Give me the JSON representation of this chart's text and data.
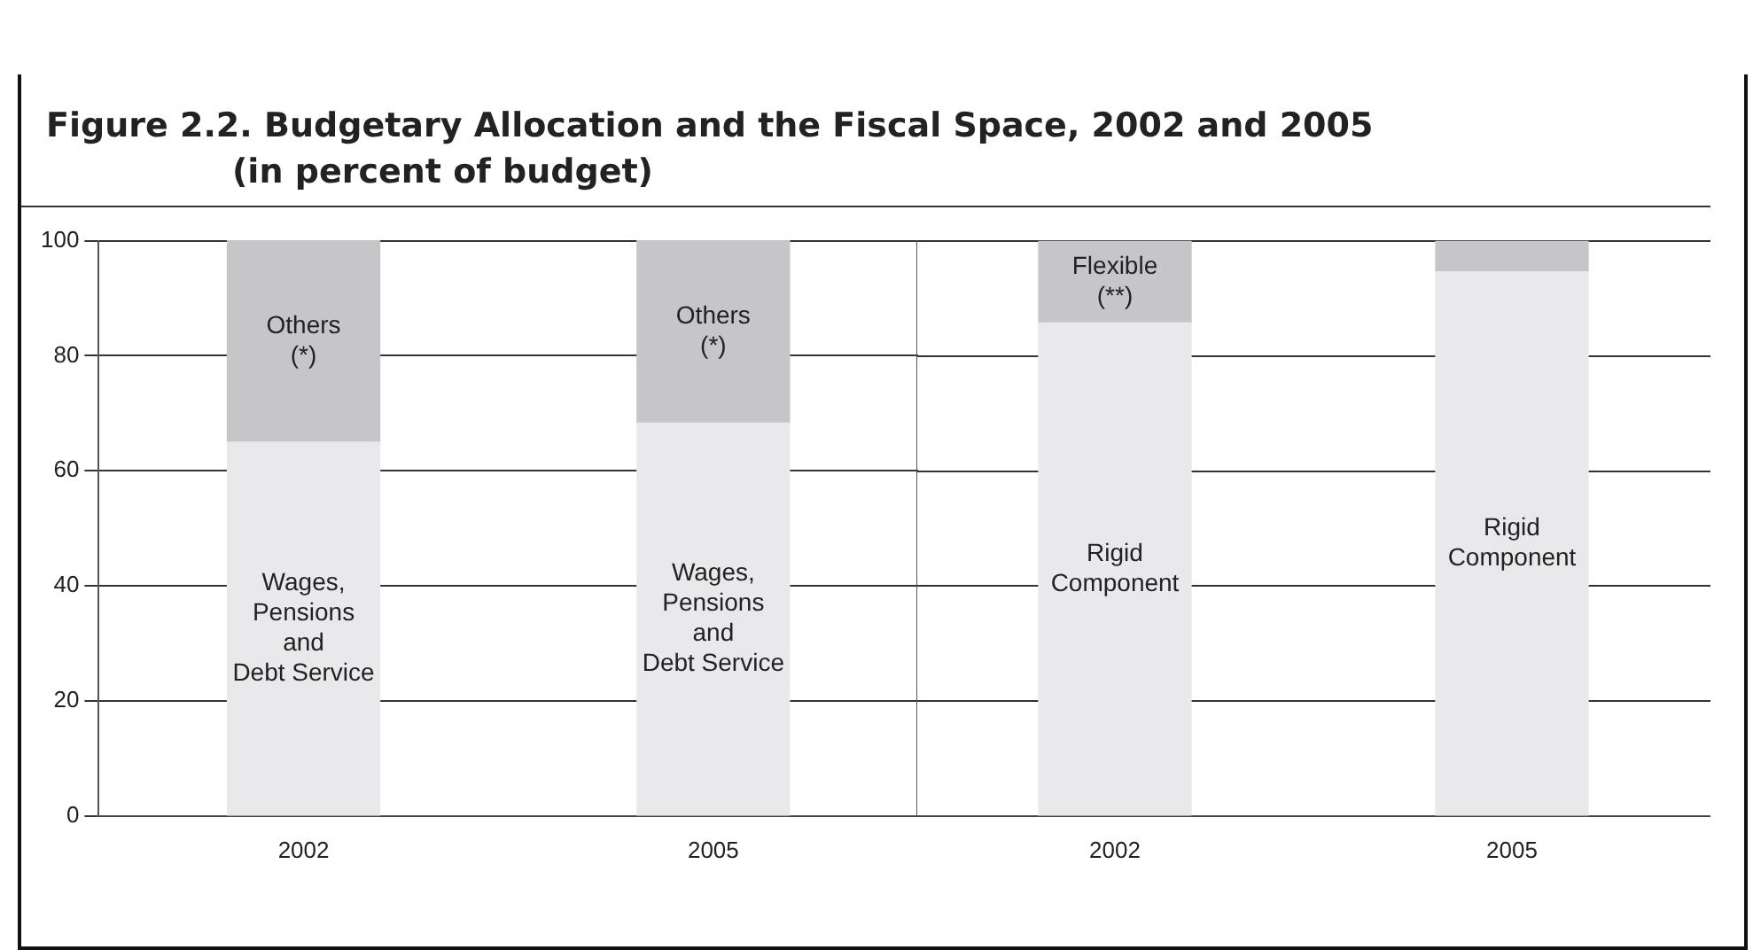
{
  "chart_data": [
    {
      "type": "bar",
      "title": "Figure 2.2.  Budgetary Allocation and the Fiscal Space, 2002 and 2005",
      "subtitle": "(in percent of budget)",
      "categories": [
        "2002",
        "2005"
      ],
      "stacked": true,
      "series": [
        {
          "color": "#e9e9eb",
          "values": [
            65,
            68.3
          ],
          "value_labels": [
            "Wages,\nPensions\nand\nDebt Service",
            "Wages,\nPensions\nand\nDebt Service"
          ]
        },
        {
          "color": "#c6c6c8",
          "values": [
            35,
            31.7
          ],
          "value_labels": [
            "Others\n(*)",
            "Others\n(*)"
          ]
        }
      ],
      "ylim": [
        0,
        100
      ],
      "yticks": [
        0,
        20,
        40,
        60,
        80,
        100
      ],
      "grid": "y",
      "legend": false
    },
    {
      "type": "bar",
      "categories": [
        "2002",
        "2005"
      ],
      "stacked": true,
      "series": [
        {
          "color": "#e9e9eb",
          "values": [
            85.8,
            94.7
          ],
          "value_labels": [
            "Rigid\nComponent",
            "Rigid\nComponent"
          ]
        },
        {
          "color": "#c6c6c8",
          "values": [
            14.2,
            5.3
          ],
          "value_labels": [
            "Flexible\n(**)",
            null
          ]
        }
      ],
      "ylim": [
        0,
        100
      ],
      "yticks": [
        0,
        20,
        40,
        60,
        80,
        100
      ],
      "grid": "y",
      "legend": false,
      "tick_labels": "x"
    }
  ]
}
